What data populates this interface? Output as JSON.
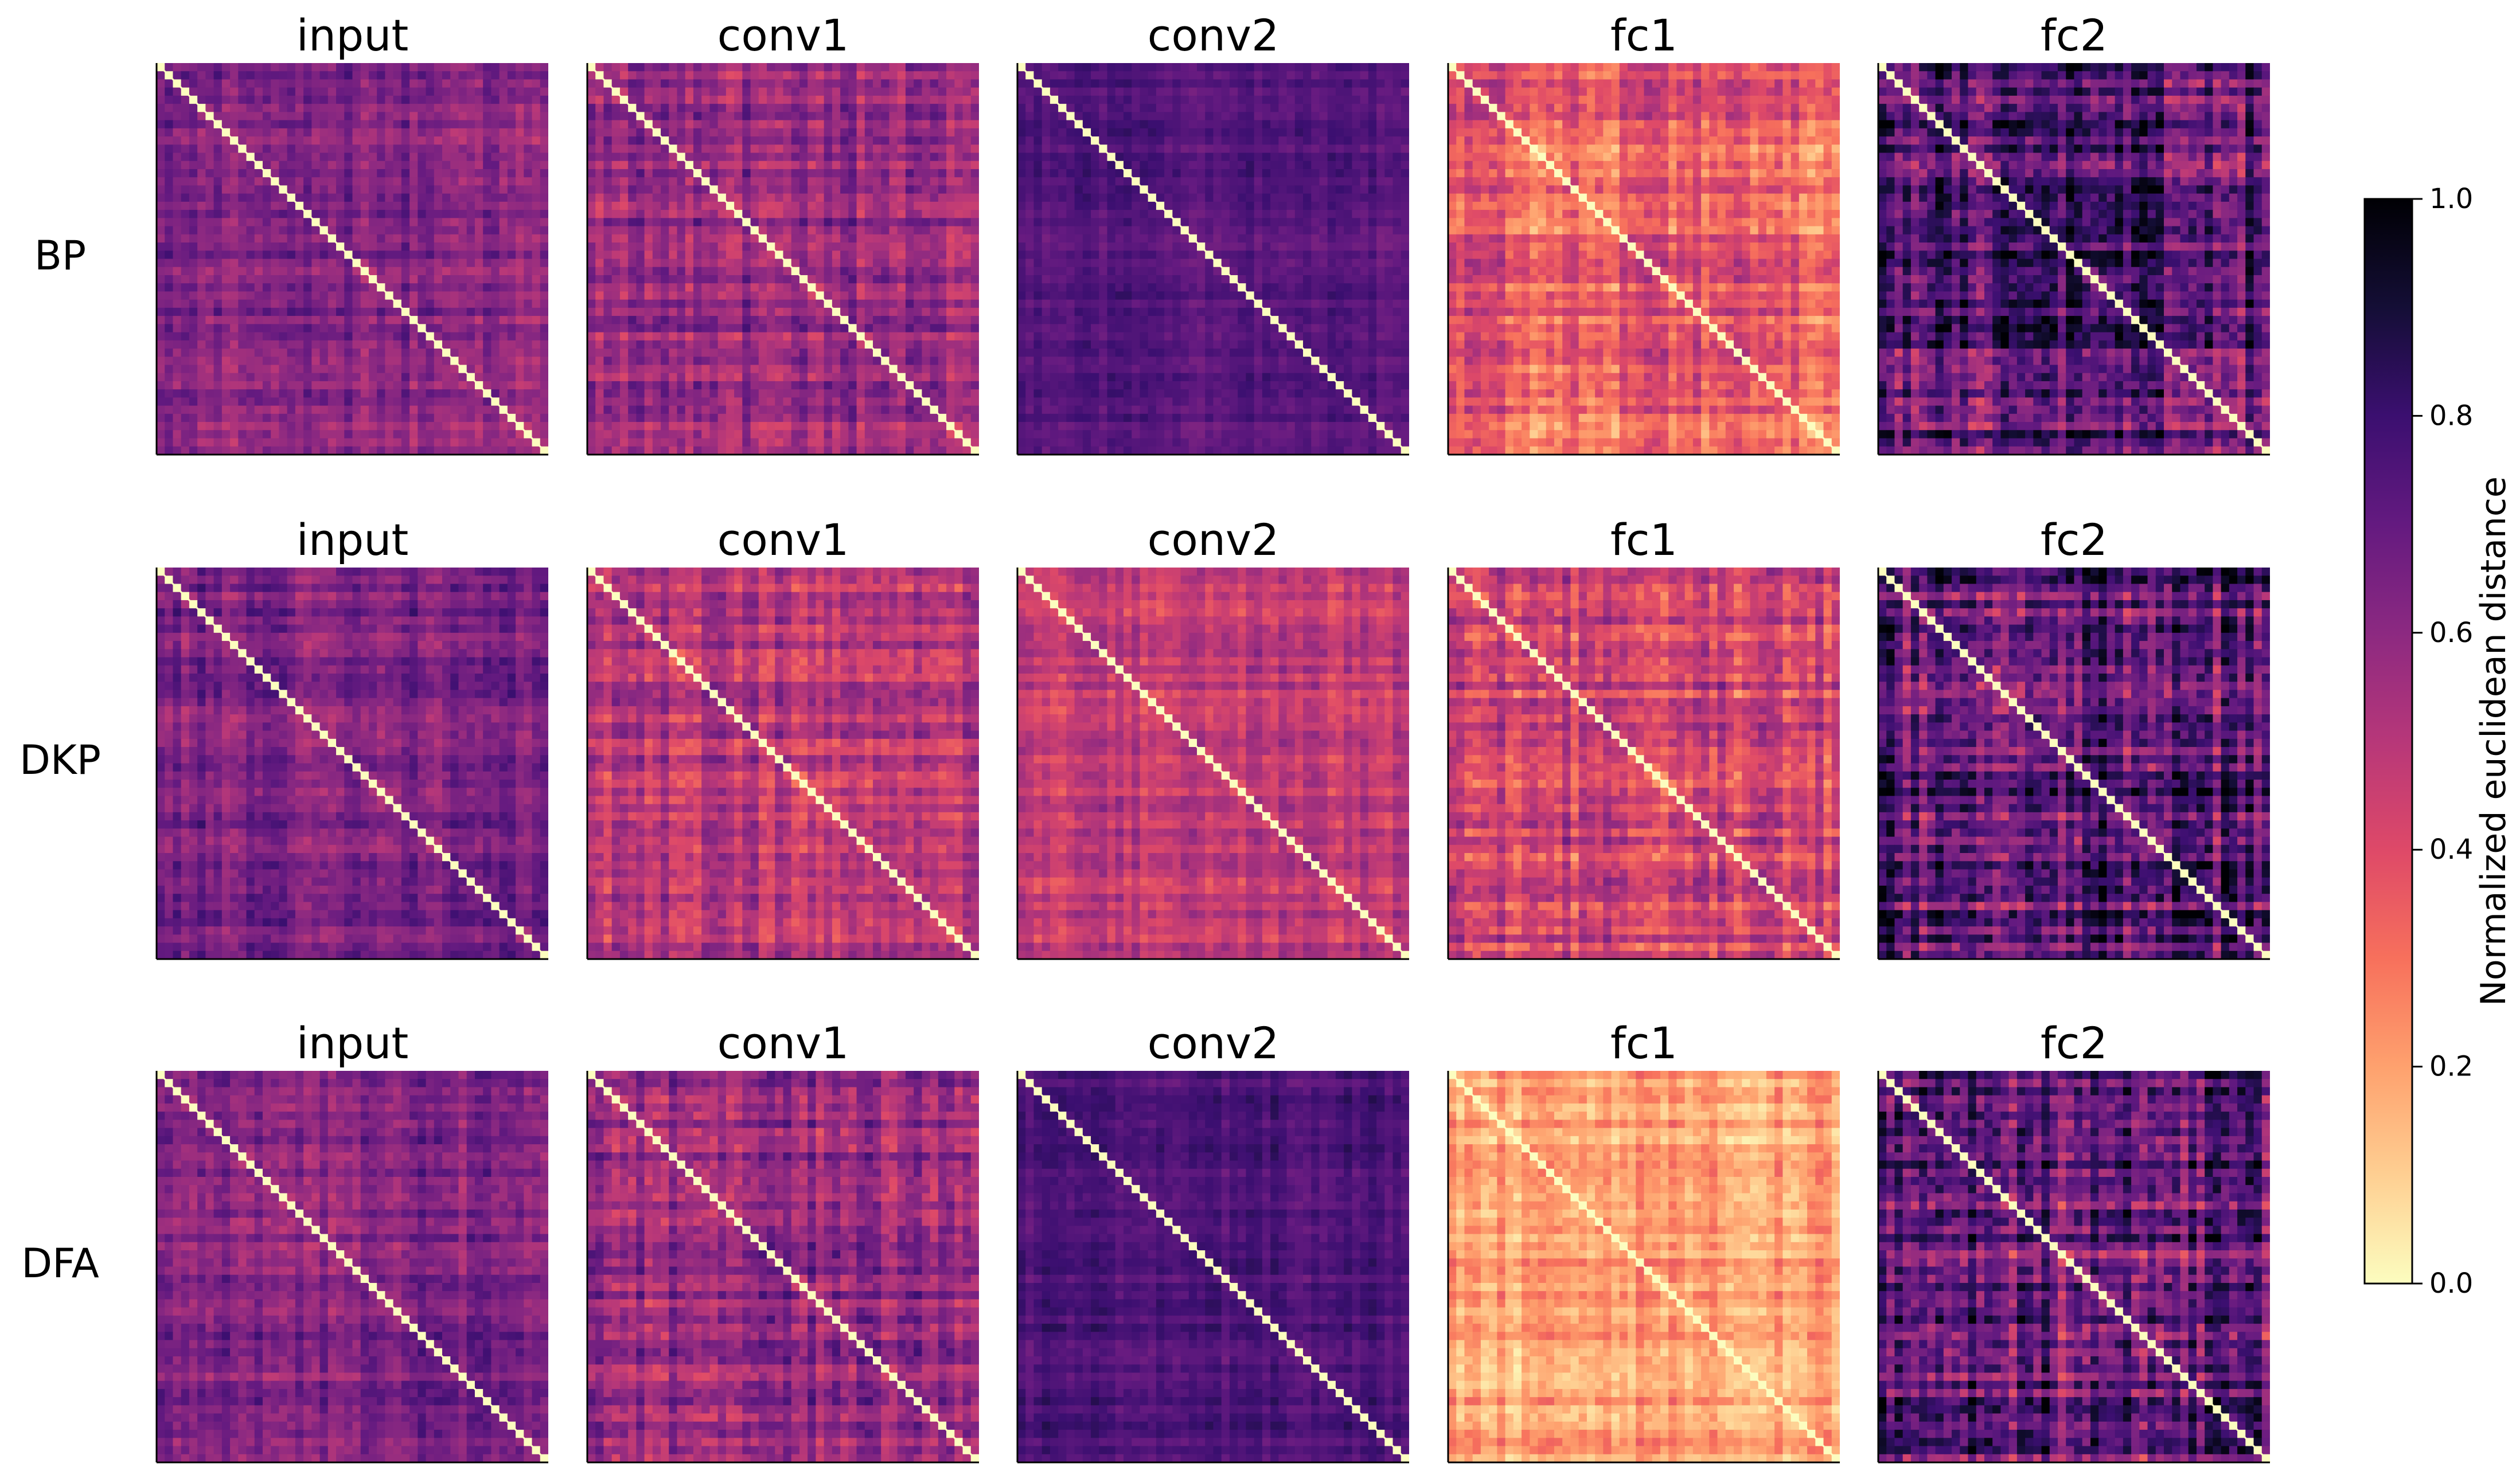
{
  "chart_data": {
    "type": "heatmap",
    "row_labels": [
      "BP",
      "DKP",
      "DFA"
    ],
    "column_titles": [
      "input",
      "conv1",
      "conv2",
      "fc1",
      "fc2"
    ],
    "panels": [
      [
        {
          "row": "BP",
          "title": "input",
          "base_level": 0.62,
          "contrast": 0.14
        },
        {
          "row": "BP",
          "title": "conv1",
          "base_level": 0.58,
          "contrast": 0.16
        },
        {
          "row": "BP",
          "title": "conv2",
          "base_level": 0.74,
          "contrast": 0.08
        },
        {
          "row": "BP",
          "title": "fc1",
          "base_level": 0.35,
          "contrast": 0.18
        },
        {
          "row": "BP",
          "title": "fc2",
          "base_level": 0.72,
          "contrast": 0.3
        }
      ],
      [
        {
          "row": "DKP",
          "title": "input",
          "base_level": 0.64,
          "contrast": 0.14
        },
        {
          "row": "DKP",
          "title": "conv1",
          "base_level": 0.5,
          "contrast": 0.16
        },
        {
          "row": "DKP",
          "title": "conv2",
          "base_level": 0.47,
          "contrast": 0.12
        },
        {
          "row": "DKP",
          "title": "fc1",
          "base_level": 0.42,
          "contrast": 0.2
        },
        {
          "row": "DKP",
          "title": "fc2",
          "base_level": 0.72,
          "contrast": 0.3
        }
      ],
      [
        {
          "row": "DFA",
          "title": "input",
          "base_level": 0.64,
          "contrast": 0.14
        },
        {
          "row": "DFA",
          "title": "conv1",
          "base_level": 0.58,
          "contrast": 0.18
        },
        {
          "row": "DFA",
          "title": "conv2",
          "base_level": 0.76,
          "contrast": 0.08
        },
        {
          "row": "DFA",
          "title": "fc1",
          "base_level": 0.2,
          "contrast": 0.14
        },
        {
          "row": "DFA",
          "title": "fc2",
          "base_level": 0.7,
          "contrast": 0.3
        }
      ]
    ],
    "diagonal_value": 0.0,
    "colorbar": {
      "label": "Normalized euclidean distance",
      "colormap": "magma_r",
      "range": [
        0.0,
        1.0
      ],
      "ticks": [
        0.0,
        0.2,
        0.4,
        0.6,
        0.8,
        1.0
      ],
      "tick_labels": [
        "0.0",
        "0.2",
        "0.4",
        "0.6",
        "0.8",
        "1.0"
      ]
    },
    "colormap_stops": [
      {
        "value": 0.0,
        "color": "#fcfdbf"
      },
      {
        "value": 0.1,
        "color": "#fecf92"
      },
      {
        "value": 0.2,
        "color": "#fea16e"
      },
      {
        "value": 0.3,
        "color": "#f7705c"
      },
      {
        "value": 0.4,
        "color": "#de4968"
      },
      {
        "value": 0.5,
        "color": "#b73779"
      },
      {
        "value": 0.6,
        "color": "#8c2981"
      },
      {
        "value": 0.7,
        "color": "#641a80"
      },
      {
        "value": 0.8,
        "color": "#3b0f70"
      },
      {
        "value": 0.9,
        "color": "#140e36"
      },
      {
        "value": 1.0,
        "color": "#000004"
      }
    ],
    "grid": false
  }
}
